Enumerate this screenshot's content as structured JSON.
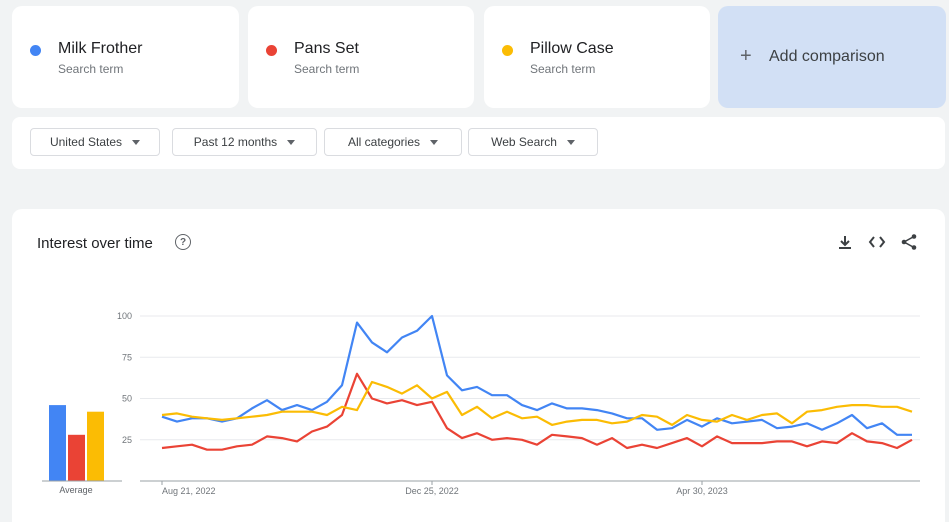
{
  "terms": [
    {
      "name": "Milk Frother",
      "subtitle": "Search term",
      "color": "#4285f4"
    },
    {
      "name": "Pans Set",
      "subtitle": "Search term",
      "color": "#ea4335"
    },
    {
      "name": "Pillow Case",
      "subtitle": "Search term",
      "color": "#fbbc04"
    }
  ],
  "add_comparison": {
    "icon": "plus-icon",
    "label": "Add comparison"
  },
  "filters": {
    "region": "United States",
    "time": "Past 12 months",
    "category": "All categories",
    "search_type": "Web Search"
  },
  "chart": {
    "title": "Interest over time",
    "help_icon": "?",
    "tools": [
      "download-icon",
      "embed-code-icon",
      "share-icon"
    ]
  },
  "chart_data": {
    "type": "line",
    "ylim": [
      0,
      100
    ],
    "yticks": [
      25,
      50,
      75,
      100
    ],
    "x_tick_labels": [
      "Aug 21, 2022",
      "Dec 25, 2022",
      "Apr 30, 2023"
    ],
    "x_tick_index": [
      0,
      18,
      36
    ],
    "average_label": "Average",
    "averages": [
      46,
      28,
      42
    ],
    "series": [
      {
        "name": "Milk Frother",
        "color": "#4285f4",
        "values": [
          39,
          36,
          38,
          38,
          36,
          38,
          44,
          49,
          43,
          46,
          43,
          48,
          58,
          96,
          84,
          78,
          87,
          91,
          100,
          64,
          55,
          57,
          52,
          52,
          46,
          43,
          47,
          44,
          44,
          43,
          41,
          38,
          38,
          31,
          32,
          37,
          33,
          38,
          35,
          36,
          37,
          32,
          33,
          35,
          31,
          35,
          40,
          32,
          35,
          28,
          28
        ]
      },
      {
        "name": "Pans Set",
        "color": "#ea4335",
        "values": [
          20,
          21,
          22,
          19,
          19,
          21,
          22,
          27,
          26,
          24,
          30,
          33,
          40,
          65,
          50,
          47,
          49,
          46,
          48,
          32,
          26,
          29,
          25,
          26,
          25,
          22,
          28,
          27,
          26,
          22,
          26,
          20,
          22,
          20,
          23,
          26,
          21,
          27,
          23,
          23,
          23,
          24,
          24,
          21,
          24,
          23,
          29,
          24,
          23,
          20,
          25
        ]
      },
      {
        "name": "Pillow Case",
        "color": "#fbbc04",
        "values": [
          40,
          41,
          39,
          38,
          37,
          38,
          39,
          40,
          42,
          42,
          42,
          40,
          45,
          43,
          60,
          57,
          53,
          58,
          50,
          54,
          40,
          45,
          38,
          42,
          38,
          39,
          34,
          36,
          37,
          37,
          35,
          36,
          40,
          39,
          34,
          40,
          37,
          36,
          40,
          37,
          40,
          41,
          35,
          42,
          43,
          45,
          46,
          46,
          45,
          45,
          42
        ]
      }
    ]
  }
}
